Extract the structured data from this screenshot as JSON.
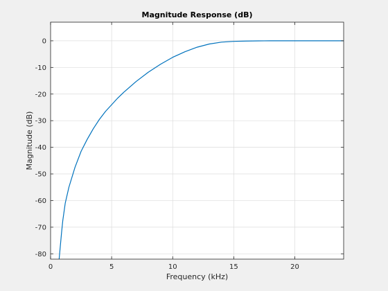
{
  "chart_data": {
    "type": "line",
    "title": "Magnitude Response (dB)",
    "xlabel": "Frequency (kHz)",
    "ylabel": "Magnitude (dB)",
    "xlim": [
      0,
      24
    ],
    "ylim": [
      -82,
      7
    ],
    "xticks": [
      0,
      5,
      10,
      15,
      20
    ],
    "yticks": [
      0,
      -10,
      -20,
      -30,
      -40,
      -50,
      -60,
      -70,
      -80
    ],
    "grid": true,
    "legend": "none",
    "series": [
      {
        "color": "#0072bd",
        "x": [
          0.7,
          0.8,
          0.9,
          1.0,
          1.2,
          1.5,
          2.0,
          2.5,
          3.0,
          3.5,
          4.0,
          4.5,
          5.0,
          5.5,
          6.0,
          7.0,
          8.0,
          9.0,
          10.0,
          11.0,
          12.0,
          13.0,
          14.0,
          15.0,
          16.0,
          17.0,
          18.0,
          20.0,
          22.0,
          24.0
        ],
        "y": [
          -82,
          -77,
          -72,
          -67.5,
          -61,
          -55,
          -47.5,
          -41.5,
          -37,
          -33,
          -29.5,
          -26.5,
          -24,
          -21.5,
          -19.3,
          -15.3,
          -11.8,
          -8.8,
          -6.2,
          -4.1,
          -2.4,
          -1.2,
          -0.5,
          -0.2,
          -0.1,
          -0.03,
          0,
          0,
          0,
          0
        ]
      }
    ]
  }
}
